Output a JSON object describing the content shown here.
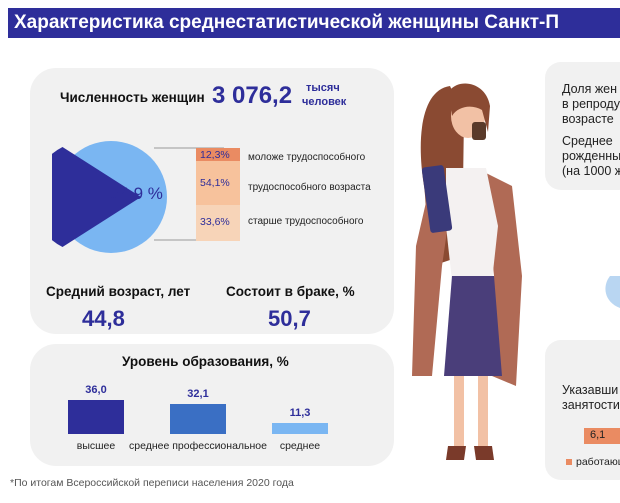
{
  "title": "Характеристика среднестатистической женщины Санкт-П",
  "population": {
    "label": "Численность женщин",
    "value": "3 076,2",
    "unit_line1": "тысяч",
    "unit_line2": "человек"
  },
  "age_groups": [
    {
      "value": "12,3%",
      "label": "моложе трудоспособного",
      "color": "#ea8b62"
    },
    {
      "value": "54,1%",
      "label": "трудоспособного возраста",
      "color": "#f7c29c"
    },
    {
      "value": "33,6%",
      "label": "старше трудоспособного",
      "color": "#f7d4b8"
    }
  ],
  "pie_label": "54,9 %",
  "pie_colors": {
    "major": "#7ab6f2",
    "minor": "#2e2e9a"
  },
  "avg_age": {
    "label": "Средний возраст, лет",
    "value": "44,8"
  },
  "married": {
    "label": "Состоит в браке, %",
    "value": "50,7"
  },
  "education": {
    "title": "Уровень образования, %",
    "bars": [
      {
        "value": "36,0",
        "label": "высшее",
        "color": "#2e2e9a"
      },
      {
        "value": "32,1",
        "label": "среднее профессиональное",
        "color": "#3a6fc4"
      },
      {
        "value": "11,3",
        "label": "среднее",
        "color": "#7ab6f2"
      }
    ]
  },
  "chart_data": {
    "type": "bar",
    "title": "Уровень образования, %",
    "categories": [
      "высшее",
      "среднее профессиональное",
      "среднее"
    ],
    "values": [
      36.0,
      32.1,
      11.3
    ],
    "ylim": [
      0,
      36
    ]
  },
  "right_top": {
    "line1": "Доля жен",
    "line2": "в репроду",
    "line3": "возрасте",
    "line4": "Среднее",
    "line5": "рожденны",
    "line6": "(на 1000 ж"
  },
  "right_bottom": {
    "line1": "Указавши",
    "line2": "занятости",
    "value": "6,1",
    "legend": "работающ"
  },
  "footnote": "*По итогам Всероссийской переписи населения 2020 года"
}
